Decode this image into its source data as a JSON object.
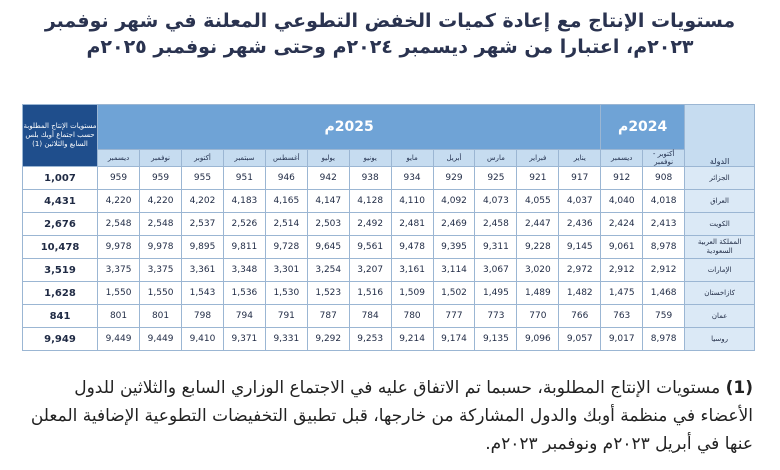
{
  "title": {
    "lines": [
      "مستويات الإنتاج مع إعادة كميات الخفض التطوعي المعلنة في شهر نوفمبر",
      "٢٠٢٣م، اعتبارا من شهر ديسمبر ٢٠٢٤م وحتى شهر نوفمبر ٢٠٢٥م"
    ]
  },
  "table": {
    "country_header": "الدولة",
    "groups": [
      {
        "label": "2024م",
        "months": [
          "أكتوبر - نوفمبر",
          "ديسمبر"
        ]
      },
      {
        "label": "2025م",
        "months": [
          "يناير",
          "فبراير",
          "مارس",
          "أبريل",
          "مايو",
          "يونيو",
          "يوليو",
          "أغسطس",
          "سبتمبر",
          "أكتوبر",
          "نوفمبر",
          "ديسمبر"
        ]
      }
    ],
    "required_header": "مستويات الإنتاج المطلوبة حسب اجتماع أوبك بلس السابع والثلاثين (1)",
    "rows": [
      {
        "country": "الجزائر",
        "values": [
          "908",
          "912",
          "917",
          "921",
          "925",
          "929",
          "934",
          "938",
          "942",
          "946",
          "951",
          "955",
          "959",
          "959"
        ],
        "required": "1,007"
      },
      {
        "country": "العراق",
        "values": [
          "4,018",
          "4,040",
          "4,037",
          "4,055",
          "4,073",
          "4,092",
          "4,110",
          "4,128",
          "4,147",
          "4,165",
          "4,183",
          "4,202",
          "4,220",
          "4,220"
        ],
        "required": "4,431"
      },
      {
        "country": "الكويت",
        "values": [
          "2,413",
          "2,424",
          "2,436",
          "2,447",
          "2,458",
          "2,469",
          "2,481",
          "2,492",
          "2,503",
          "2,514",
          "2,526",
          "2,537",
          "2,548",
          "2,548"
        ],
        "required": "2,676"
      },
      {
        "country": "المملكة العربية السعودية",
        "values": [
          "8,978",
          "9,061",
          "9,145",
          "9,228",
          "9,311",
          "9,395",
          "9,478",
          "9,561",
          "9,645",
          "9,728",
          "9,811",
          "9,895",
          "9,978",
          "9,978"
        ],
        "required": "10,478"
      },
      {
        "country": "الإمارات",
        "values": [
          "2,912",
          "2,912",
          "2,972",
          "3,020",
          "3,067",
          "3,114",
          "3,161",
          "3,207",
          "3,254",
          "3,301",
          "3,348",
          "3,361",
          "3,375",
          "3,375"
        ],
        "required": "3,519"
      },
      {
        "country": "كازاخستان",
        "values": [
          "1,468",
          "1,475",
          "1,482",
          "1,489",
          "1,495",
          "1,502",
          "1,509",
          "1,516",
          "1,523",
          "1,530",
          "1,536",
          "1,543",
          "1,550",
          "1,550"
        ],
        "required": "1,628"
      },
      {
        "country": "عمان",
        "values": [
          "759",
          "763",
          "766",
          "770",
          "773",
          "777",
          "780",
          "784",
          "787",
          "791",
          "794",
          "798",
          "801",
          "801"
        ],
        "required": "841"
      },
      {
        "country": "روسيا",
        "values": [
          "8,978",
          "9,017",
          "9,057",
          "9,096",
          "9,135",
          "9,174",
          "9,214",
          "9,253",
          "9,292",
          "9,331",
          "9,371",
          "9,410",
          "9,449",
          "9,449"
        ],
        "required": "9,949"
      }
    ]
  },
  "footnote": {
    "marker": "(1)",
    "text": "مستويات الإنتاج المطلوبة، حسبما تم الاتفاق عليه في الاجتماع الوزاري السابع والثلاثين للدول الأعضاء في منظمة أوبك والدول المشاركة من خارجها، قبل تطبيق التخفيضات التطوعية الإضافية المعلن عنها في أبريل ٢٠٢٣م ونوفمبر ٢٠٢٣م."
  }
}
